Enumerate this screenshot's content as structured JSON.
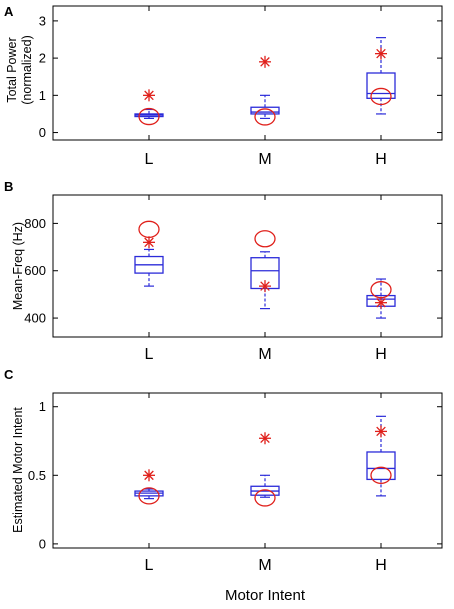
{
  "xtitle": "Motor Intent",
  "chart_data": [
    {
      "type": "box",
      "panel": "A",
      "ylabel": [
        "Total Power",
        "(normalized)"
      ],
      "categories": [
        "L",
        "M",
        "H"
      ],
      "ylim": [
        -0.2,
        3.4
      ],
      "yticks": [
        0,
        1,
        2,
        3
      ],
      "boxes": [
        {
          "min": 0.38,
          "q1": 0.43,
          "median": 0.47,
          "q3": 0.5,
          "max": 0.62
        },
        {
          "min": 0.38,
          "q1": 0.5,
          "median": 0.55,
          "q3": 0.68,
          "max": 1.0
        },
        {
          "min": 0.5,
          "q1": 0.92,
          "median": 1.05,
          "q3": 1.6,
          "max": 2.55
        }
      ],
      "circles": [
        0.43,
        0.42,
        0.97
      ],
      "stars": [
        1.0,
        1.9,
        2.12
      ]
    },
    {
      "type": "box",
      "panel": "B",
      "ylabel": [
        "Mean-Freq (Hz)"
      ],
      "categories": [
        "L",
        "M",
        "H"
      ],
      "ylim": [
        320,
        920
      ],
      "yticks": [
        400,
        600,
        800
      ],
      "boxes": [
        {
          "min": 535,
          "q1": 590,
          "median": 625,
          "q3": 660,
          "max": 690
        },
        {
          "min": 440,
          "q1": 525,
          "median": 600,
          "q3": 655,
          "max": 680
        },
        {
          "min": 400,
          "q1": 450,
          "median": 480,
          "q3": 495,
          "max": 565
        }
      ],
      "circles": [
        775,
        735,
        520
      ],
      "stars": [
        720,
        535,
        465
      ]
    },
    {
      "type": "box",
      "panel": "C",
      "ylabel": [
        "Estimated Motor Intent"
      ],
      "categories": [
        "L",
        "M",
        "H"
      ],
      "ylim": [
        -0.03,
        1.1
      ],
      "yticks": [
        0,
        0.5,
        1
      ],
      "ytick_labels": [
        "0",
        "0.5",
        "1"
      ],
      "boxes": [
        {
          "min": 0.33,
          "q1": 0.35,
          "median": 0.37,
          "q3": 0.385,
          "max": 0.4
        },
        {
          "min": 0.34,
          "q1": 0.355,
          "median": 0.385,
          "q3": 0.42,
          "max": 0.5
        },
        {
          "min": 0.35,
          "q1": 0.47,
          "median": 0.55,
          "q3": 0.67,
          "max": 0.93
        }
      ],
      "circles": [
        0.35,
        0.335,
        0.5
      ],
      "stars": [
        0.5,
        0.77,
        0.82
      ]
    }
  ]
}
